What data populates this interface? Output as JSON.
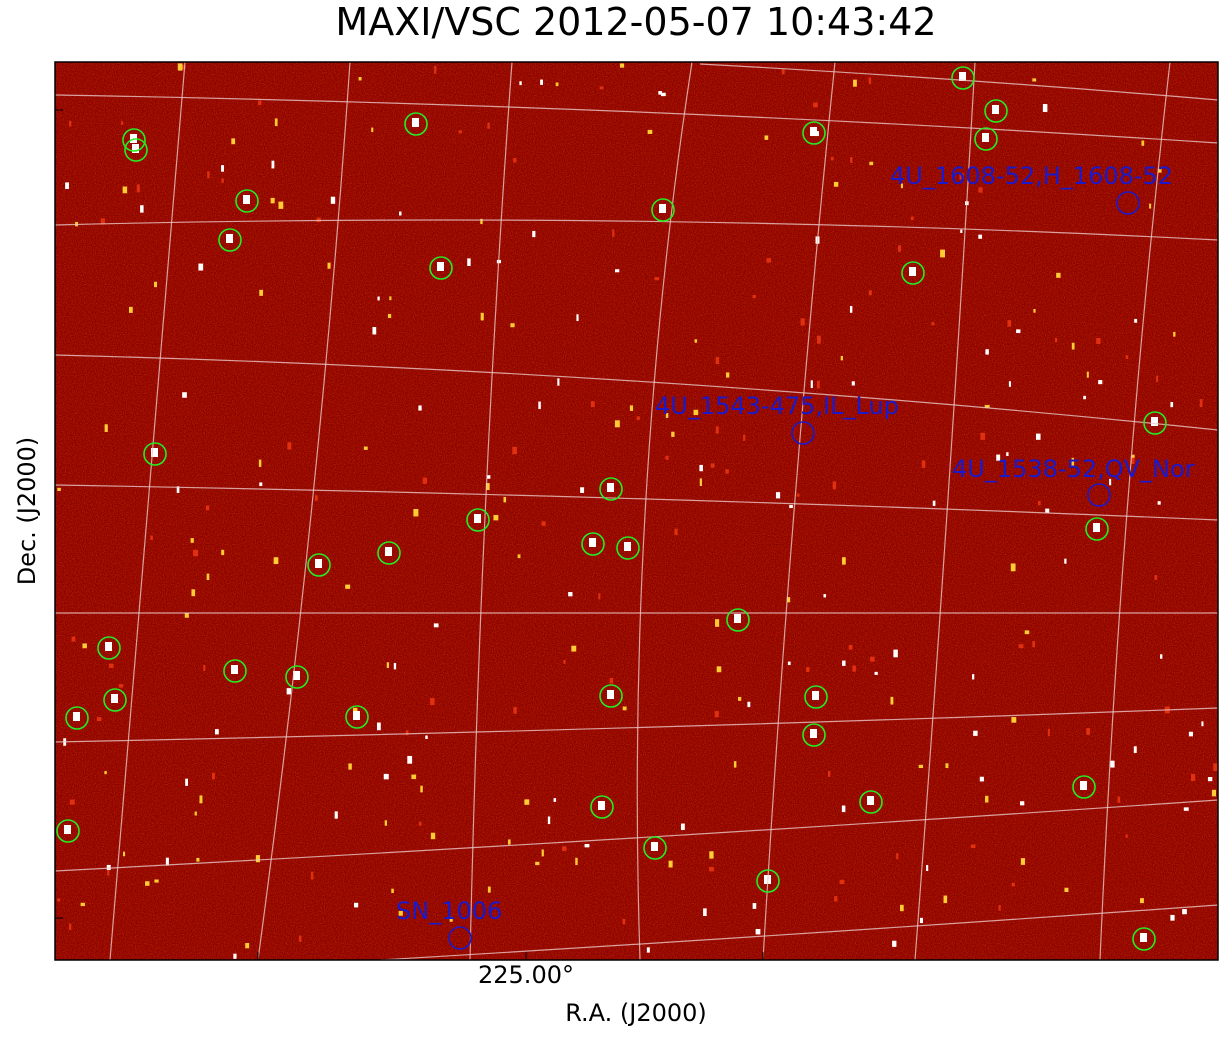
{
  "header": {
    "title": "MAXI/VSC 2012-05-07 10:43:42"
  },
  "axes": {
    "x_label": "R.A. (J2000)",
    "y_label": "Dec. (J2000)",
    "x_tick": "225.00°"
  },
  "sources": [
    {
      "label": "4U_1608-52,H_1608-52"
    },
    {
      "label": "4U_1543-475,IL_Lup"
    },
    {
      "label": "4U_1538-52,QV_Nor"
    },
    {
      "label": "SN_1006"
    }
  ]
}
